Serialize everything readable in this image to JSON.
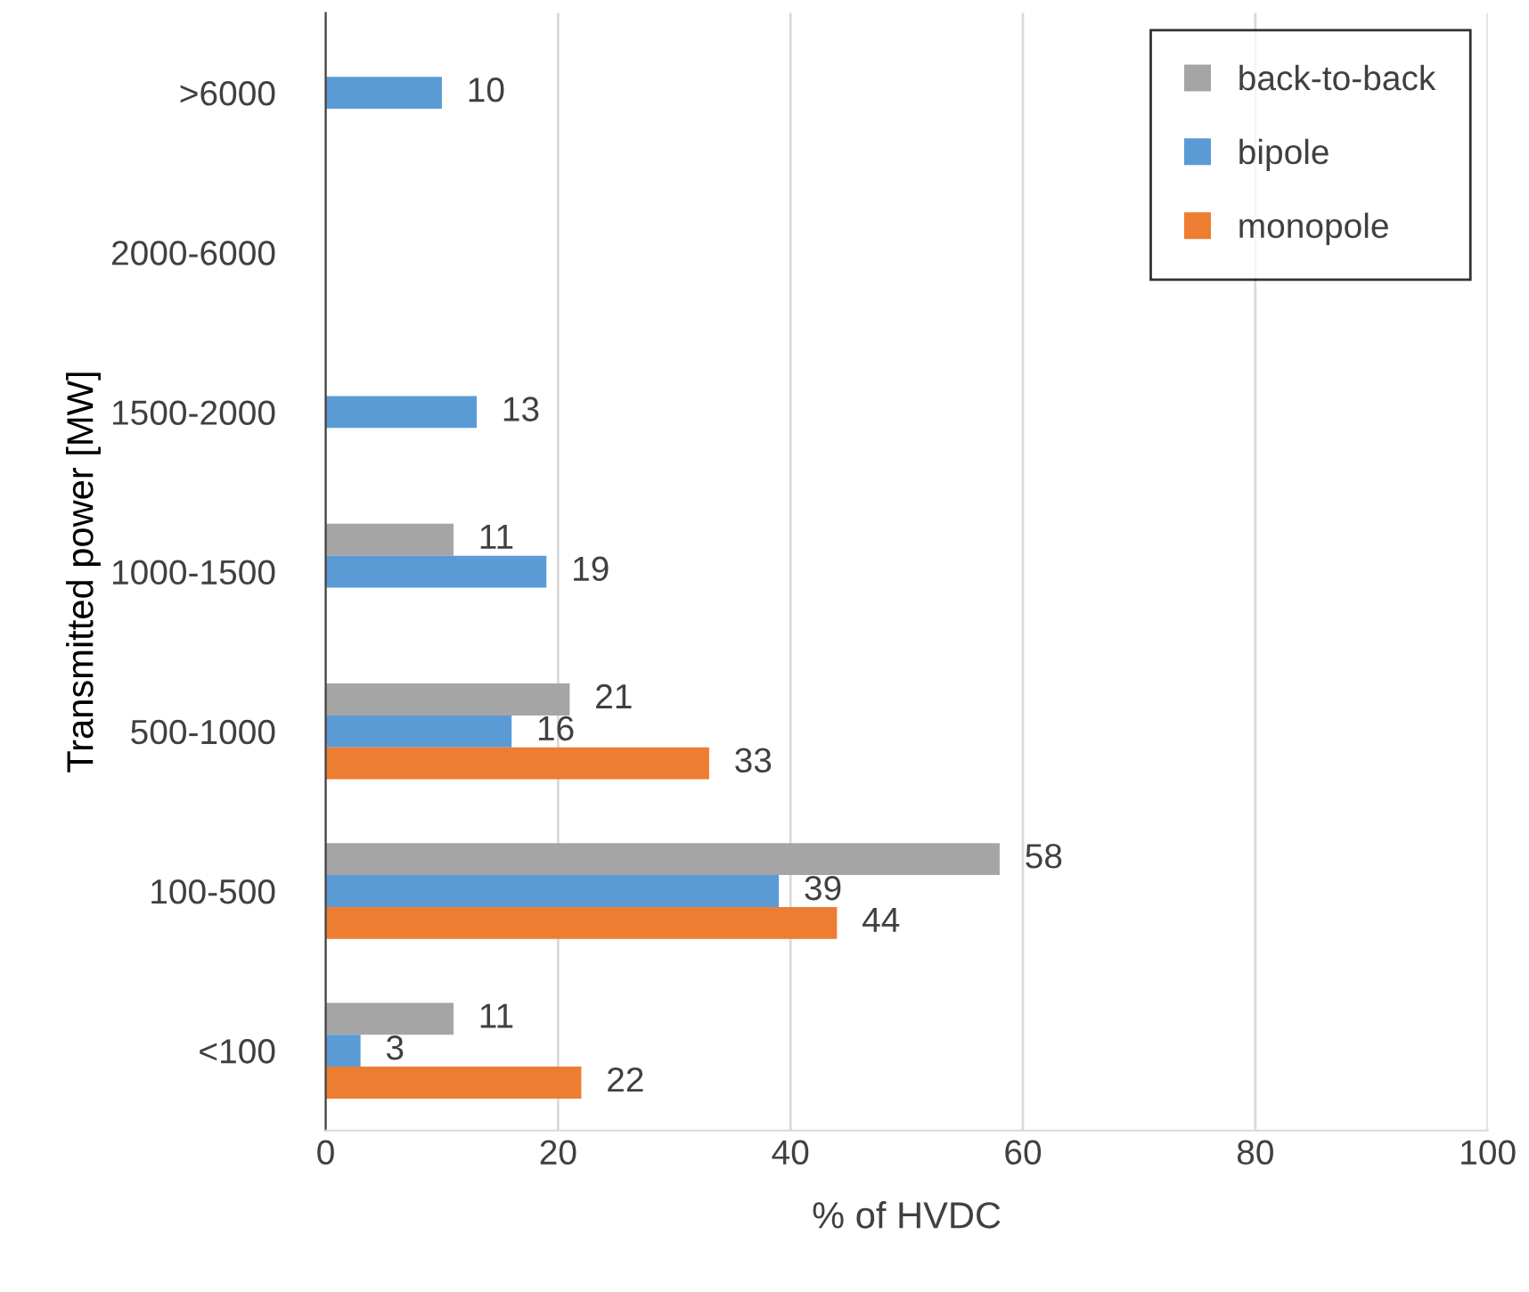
{
  "chart_data": {
    "type": "bar",
    "orientation": "horizontal",
    "xlabel": "% of HVDC",
    "ylabel": "Transmitted power [MW]",
    "categories": [
      ">6000",
      "2000-6000",
      "1500-2000",
      "1000-1500",
      "500-1000",
      "100-500",
      "<100"
    ],
    "series": [
      {
        "name": "back-to-back",
        "color": "#a5a5a5",
        "values": [
          null,
          null,
          null,
          11,
          21,
          58,
          11
        ]
      },
      {
        "name": "bipole",
        "color": "#5b9bd5",
        "values": [
          10,
          null,
          13,
          19,
          16,
          39,
          3
        ]
      },
      {
        "name": "monopole",
        "color": "#ed7d31",
        "values": [
          null,
          null,
          null,
          null,
          33,
          44,
          22
        ]
      }
    ],
    "xlim": [
      0,
      100
    ],
    "xticks": [
      0,
      20,
      40,
      60,
      80,
      100
    ],
    "grid": "x",
    "legend": "top right",
    "data_labels": true
  }
}
